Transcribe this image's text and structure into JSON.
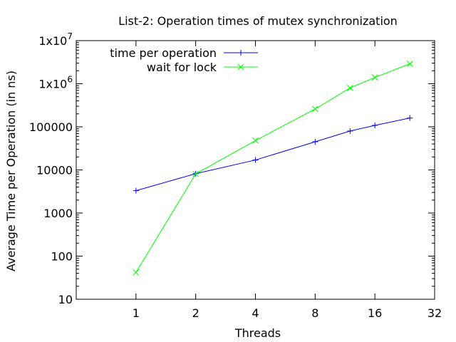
{
  "chart_data": {
    "type": "line",
    "title": "List-2: Operation times of mutex synchronization",
    "xlabel": "Threads",
    "ylabel": "Average Time per Operation (in ns)",
    "x_scale": "log2",
    "y_scale": "log10",
    "xlim": [
      0.5,
      32
    ],
    "ylim": [
      10,
      10000000
    ],
    "x_ticks": [
      {
        "value": 1,
        "label": "1"
      },
      {
        "value": 2,
        "label": "2"
      },
      {
        "value": 4,
        "label": "4"
      },
      {
        "value": 8,
        "label": "8"
      },
      {
        "value": 16,
        "label": "16"
      },
      {
        "value": 32,
        "label": "32"
      }
    ],
    "y_ticks": [
      {
        "value": 10,
        "label": "10"
      },
      {
        "value": 100,
        "label": "100"
      },
      {
        "value": 1000,
        "label": "1000"
      },
      {
        "value": 10000,
        "label": "10000"
      },
      {
        "value": 100000,
        "label": "100000"
      },
      {
        "value": 1000000,
        "label": "1x10",
        "exp": "6"
      },
      {
        "value": 10000000,
        "label": "1x10",
        "exp": "7"
      }
    ],
    "legend_position": "top-left",
    "grid": false,
    "series": [
      {
        "name": "time per operation",
        "color": "#0000ff",
        "marker": "plus",
        "x": [
          1,
          2,
          4,
          8,
          12,
          16,
          24
        ],
        "y": [
          3300,
          8200,
          17000,
          45000,
          80000,
          108000,
          160000
        ]
      },
      {
        "name": "wait for lock",
        "color": "#00ff00",
        "marker": "cross",
        "x": [
          1,
          2,
          4,
          8,
          12,
          16,
          24
        ],
        "y": [
          42,
          8100,
          48000,
          260000,
          800000,
          1400000,
          2900000
        ]
      }
    ]
  }
}
